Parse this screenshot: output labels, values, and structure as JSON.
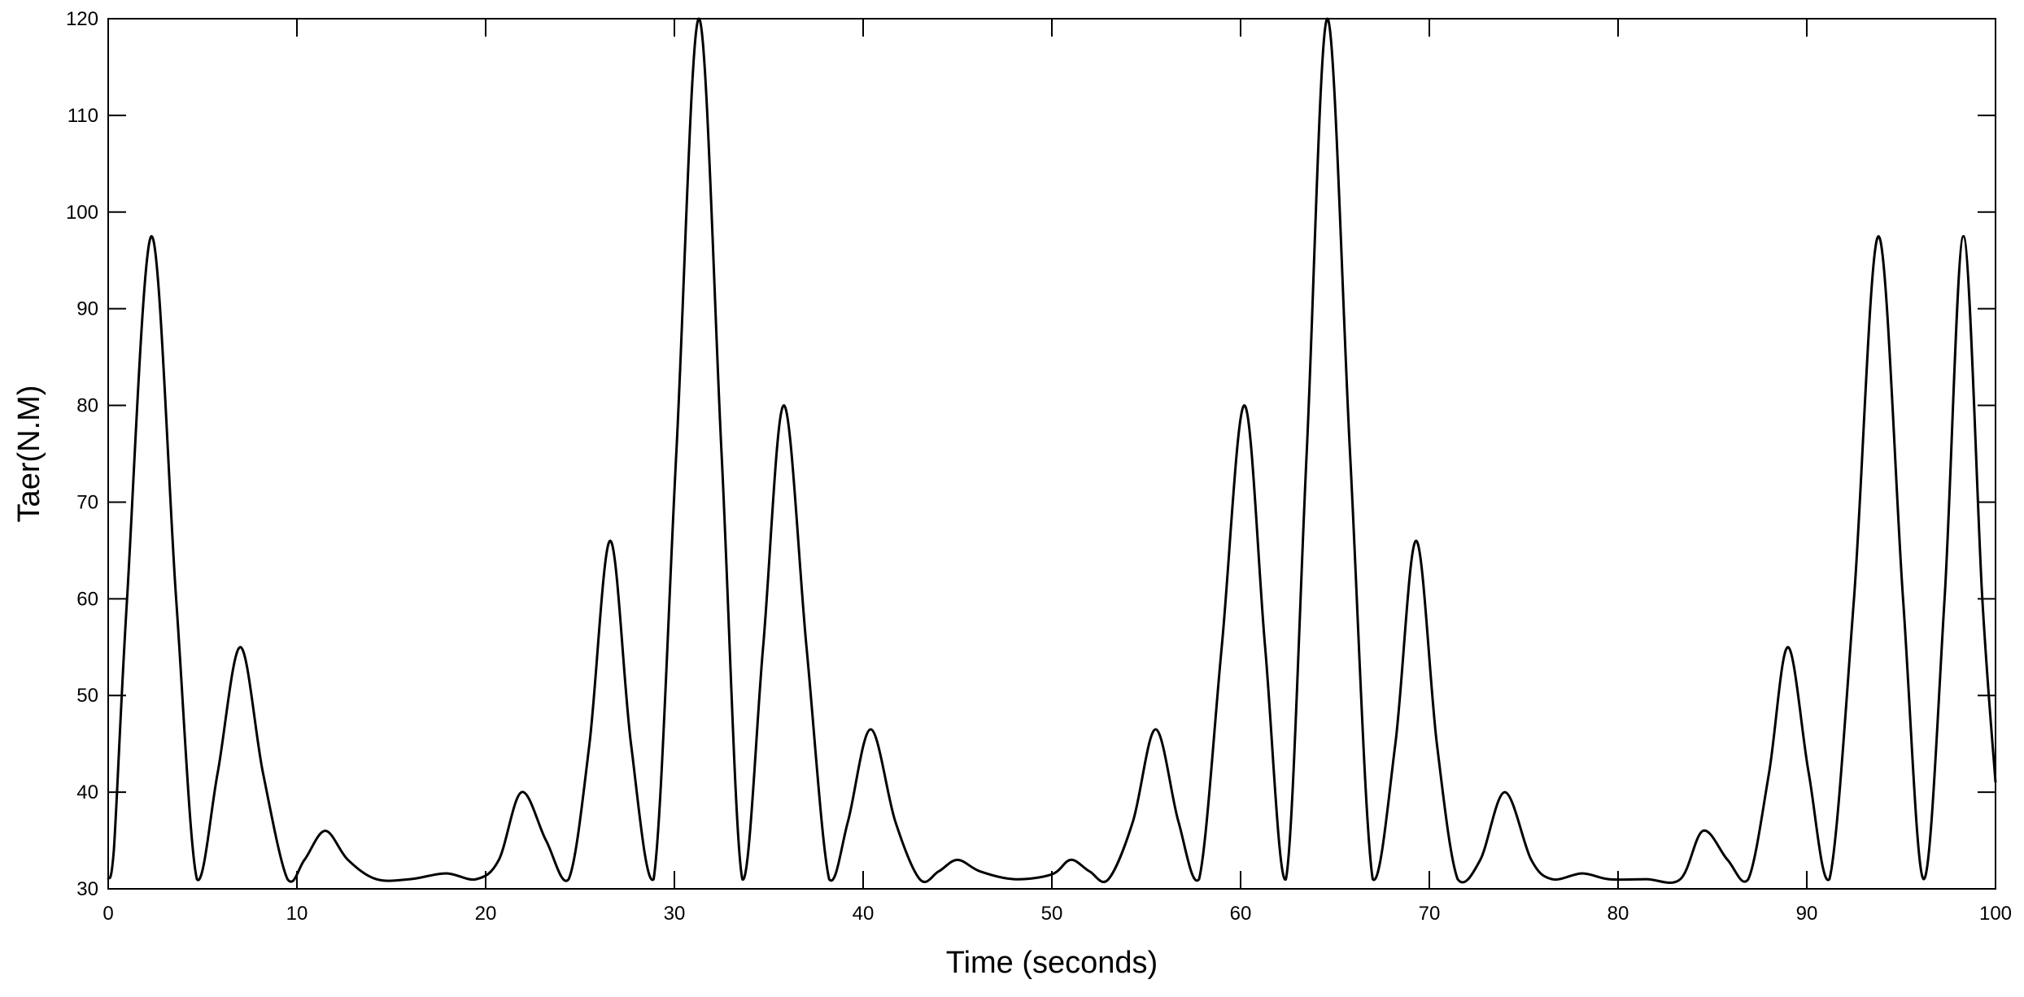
{
  "chart_data": {
    "type": "line",
    "title": "",
    "xlabel": "Time (seconds)",
    "ylabel": "Taer(N.M)",
    "xlim": [
      0,
      100
    ],
    "ylim": [
      30,
      120
    ],
    "xticks": [
      0,
      10,
      20,
      30,
      40,
      50,
      60,
      70,
      80,
      90,
      100
    ],
    "yticks": [
      30,
      40,
      50,
      60,
      70,
      80,
      90,
      100,
      110,
      120
    ],
    "xtick_labels": [
      "0",
      "10",
      "20",
      "30",
      "40",
      "50",
      "60",
      "70",
      "80",
      "90",
      "100"
    ],
    "ytick_labels": [
      "30",
      "40",
      "50",
      "60",
      "70",
      "80",
      "90",
      "100",
      "110",
      "120"
    ],
    "grid": false,
    "line_color": "#000000",
    "series": [
      {
        "x": [
          0,
          0.3,
          1.0,
          2.3,
          3.6,
          4.7,
          5.8,
          7.0,
          8.2,
          9.5,
          10.4,
          11.5,
          12.7,
          14.2,
          16.0,
          17.9,
          19.5,
          20.7,
          21.9,
          23.2,
          24.4,
          25.5,
          26.6,
          27.7,
          28.9,
          30.1,
          31.3,
          32.5,
          33.6,
          34.7,
          35.8,
          37.0,
          38.2,
          39.2,
          40.4,
          41.7,
          43.0,
          44.0,
          45.0,
          46.2,
          48.0,
          50.0,
          51.0,
          52.0,
          53.0,
          54.3,
          55.5,
          56.7,
          57.8,
          59.0,
          60.2,
          61.3,
          62.4,
          63.5,
          64.6,
          65.8,
          67.0,
          68.2,
          69.3,
          70.4,
          71.5,
          72.7,
          74.0,
          75.4,
          76.5,
          78.1,
          79.5,
          81.5,
          83.3,
          84.5,
          85.8,
          86.9,
          88.0,
          89.0,
          90.1,
          91.2,
          92.5,
          93.8,
          95.1,
          96.2,
          97.3,
          98.3,
          99.3,
          100
        ],
        "y": [
          31,
          34,
          60,
          97.5,
          60,
          31,
          42,
          55,
          42,
          31,
          33,
          36,
          33,
          31,
          31,
          31.6,
          31,
          33,
          40,
          35,
          31,
          45,
          66,
          45,
          31,
          75,
          120,
          75,
          31,
          55,
          80,
          55,
          31,
          37,
          46.5,
          37,
          31,
          31.8,
          33,
          31.8,
          31,
          31.5,
          33,
          31.8,
          31,
          37,
          46.5,
          37,
          31,
          55,
          80,
          55,
          31,
          75,
          120,
          75,
          31,
          45,
          66,
          45,
          31,
          33,
          40,
          33,
          31,
          31.6,
          31,
          31,
          31,
          36,
          33,
          31,
          42,
          55,
          42,
          31,
          60,
          97.5,
          60,
          31,
          60,
          97.5,
          60,
          41
        ]
      }
    ]
  }
}
